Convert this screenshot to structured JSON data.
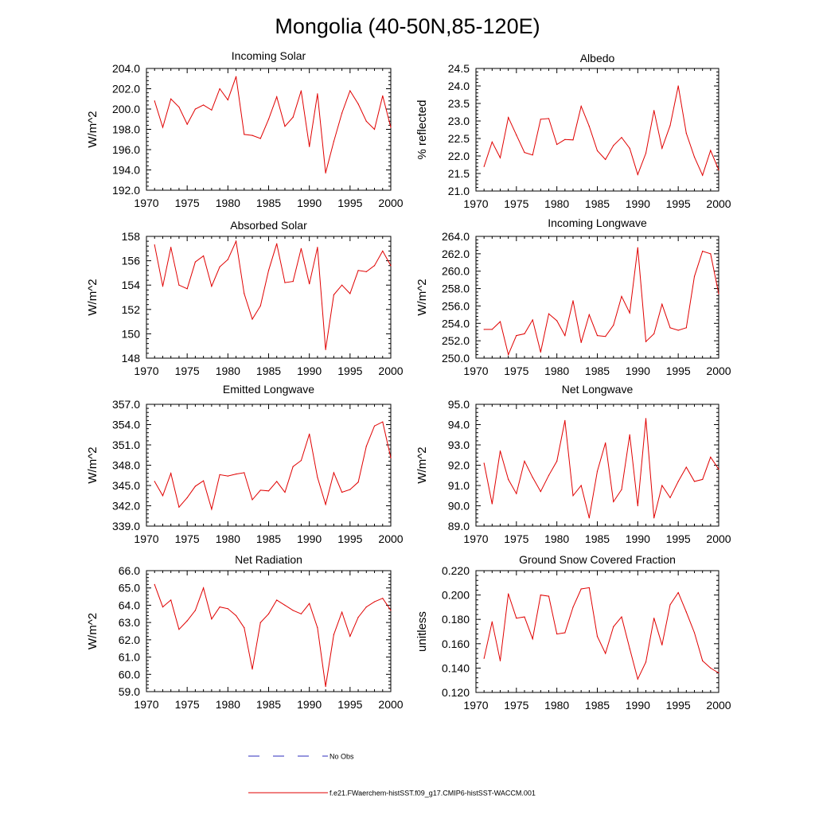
{
  "figure": {
    "title": "Mongolia (40-50N,85-120E)",
    "legend": [
      {
        "label": "No Obs",
        "color": "#2d2dbe",
        "dash": true
      },
      {
        "label": "f.e21.FWaerchem-histSST.f09_g17.CMIP6-histSST-WACCM.001",
        "color": "#e00000",
        "dash": false
      }
    ]
  },
  "chart_data": [
    {
      "type": "line",
      "title": "Incoming Solar",
      "ylabel": "W/m^2",
      "xlim": [
        1970,
        2000
      ],
      "ylim": [
        192,
        204
      ],
      "xticks": [
        1970,
        1975,
        1980,
        1985,
        1990,
        1995,
        2000
      ],
      "yticks": [
        192.0,
        194.0,
        196.0,
        198.0,
        200.0,
        202.0,
        204.0
      ],
      "ytick_labels": [
        "192.0",
        "194.0",
        "196.0",
        "198.0",
        "200.0",
        "202.0",
        "204.0"
      ],
      "x": [
        1971,
        1972,
        1973,
        1974,
        1975,
        1976,
        1977,
        1978,
        1979,
        1980,
        1981,
        1982,
        1983,
        1984,
        1985,
        1986,
        1987,
        1988,
        1989,
        1990,
        1991,
        1992,
        1993,
        1994,
        1995,
        1996,
        1997,
        1998,
        1999,
        2000
      ],
      "values": [
        200.8,
        198.2,
        201.0,
        200.2,
        198.5,
        200.0,
        200.4,
        199.9,
        202.0,
        200.9,
        203.2,
        197.5,
        197.4,
        197.1,
        199.0,
        201.2,
        198.3,
        199.2,
        201.8,
        196.3,
        201.5,
        193.7,
        196.8,
        199.6,
        201.8,
        200.5,
        198.8,
        198.0,
        201.3,
        198.2
      ],
      "color": "#e00000"
    },
    {
      "type": "line",
      "title": "Albedo",
      "ylabel": "% reflected",
      "xlim": [
        1970,
        2000
      ],
      "ylim": [
        21.0,
        24.5
      ],
      "xticks": [
        1970,
        1975,
        1980,
        1985,
        1990,
        1995,
        2000
      ],
      "yticks": [
        21.0,
        21.5,
        22.0,
        22.5,
        23.0,
        23.5,
        24.0,
        24.5
      ],
      "ytick_labels": [
        "21.0",
        "21.5",
        "22.0",
        "22.5",
        "23.0",
        "23.5",
        "24.0",
        "24.5"
      ],
      "x": [
        1971,
        1972,
        1973,
        1974,
        1975,
        1976,
        1977,
        1978,
        1979,
        1980,
        1981,
        1982,
        1983,
        1984,
        1985,
        1986,
        1987,
        1988,
        1989,
        1990,
        1991,
        1992,
        1993,
        1994,
        1995,
        1996,
        1997,
        1998,
        1999,
        2000
      ],
      "values": [
        21.7,
        22.4,
        21.95,
        23.1,
        22.6,
        22.1,
        22.03,
        23.05,
        23.07,
        22.33,
        22.47,
        22.46,
        23.42,
        22.85,
        22.15,
        21.9,
        22.3,
        22.53,
        22.22,
        21.47,
        22.08,
        23.3,
        22.22,
        22.87,
        24.0,
        22.65,
        21.97,
        21.45,
        22.16,
        21.6
      ],
      "color": "#e00000"
    },
    {
      "type": "line",
      "title": "Absorbed Solar",
      "ylabel": "W/m^2",
      "xlim": [
        1970,
        2000
      ],
      "ylim": [
        148,
        158
      ],
      "xticks": [
        1970,
        1975,
        1980,
        1985,
        1990,
        1995,
        2000
      ],
      "yticks": [
        148,
        150,
        152,
        154,
        156,
        158
      ],
      "ytick_labels": [
        "148",
        "150",
        "152",
        "154",
        "156",
        "158"
      ],
      "x": [
        1971,
        1972,
        1973,
        1974,
        1975,
        1976,
        1977,
        1978,
        1979,
        1980,
        1981,
        1982,
        1983,
        1984,
        1985,
        1986,
        1987,
        1988,
        1989,
        1990,
        1991,
        1992,
        1993,
        1994,
        1995,
        1996,
        1997,
        1998,
        1999,
        2000
      ],
      "values": [
        157.3,
        153.9,
        157.1,
        154.0,
        153.7,
        155.9,
        156.4,
        153.9,
        155.5,
        156.1,
        157.6,
        153.3,
        151.2,
        152.3,
        155.2,
        157.4,
        154.2,
        154.3,
        157.0,
        154.1,
        157.1,
        148.7,
        153.2,
        154.0,
        153.3,
        155.2,
        155.1,
        155.6,
        156.8,
        155.6
      ],
      "color": "#e00000"
    },
    {
      "type": "line",
      "title": "Incoming Longwave",
      "ylabel": "W/m^2",
      "xlim": [
        1970,
        2000
      ],
      "ylim": [
        250,
        264
      ],
      "xticks": [
        1970,
        1975,
        1980,
        1985,
        1990,
        1995,
        2000
      ],
      "yticks": [
        250.0,
        252.0,
        254.0,
        256.0,
        258.0,
        260.0,
        262.0,
        264.0
      ],
      "ytick_labels": [
        "250.0",
        "252.0",
        "254.0",
        "256.0",
        "258.0",
        "260.0",
        "262.0",
        "264.0"
      ],
      "x": [
        1971,
        1972,
        1973,
        1974,
        1975,
        1976,
        1977,
        1978,
        1979,
        1980,
        1981,
        1982,
        1983,
        1984,
        1985,
        1986,
        1987,
        1988,
        1989,
        1990,
        1991,
        1992,
        1993,
        1994,
        1995,
        1996,
        1997,
        1998,
        1999,
        2000
      ],
      "values": [
        253.3,
        253.3,
        254.2,
        250.4,
        252.6,
        252.8,
        254.4,
        250.7,
        255.1,
        254.3,
        252.6,
        256.6,
        251.8,
        255.0,
        252.6,
        252.5,
        253.8,
        257.1,
        255.2,
        262.7,
        251.9,
        252.8,
        256.2,
        253.5,
        253.2,
        253.5,
        259.4,
        262.3,
        262.0,
        257.4
      ],
      "color": "#e00000"
    },
    {
      "type": "line",
      "title": "Emitted Longwave",
      "ylabel": "W/m^2",
      "xlim": [
        1970,
        2000
      ],
      "ylim": [
        339,
        357
      ],
      "xticks": [
        1970,
        1975,
        1980,
        1985,
        1990,
        1995,
        2000
      ],
      "yticks": [
        339.0,
        342.0,
        345.0,
        348.0,
        351.0,
        354.0,
        357.0
      ],
      "ytick_labels": [
        "339.0",
        "342.0",
        "345.0",
        "348.0",
        "351.0",
        "354.0",
        "357.0"
      ],
      "x": [
        1971,
        1972,
        1973,
        1974,
        1975,
        1976,
        1977,
        1978,
        1979,
        1980,
        1981,
        1982,
        1983,
        1984,
        1985,
        1986,
        1987,
        1988,
        1989,
        1990,
        1991,
        1992,
        1993,
        1994,
        1995,
        1996,
        1997,
        1998,
        1999,
        2000
      ],
      "values": [
        345.6,
        343.5,
        346.8,
        341.8,
        343.2,
        344.9,
        345.7,
        341.5,
        346.6,
        346.4,
        346.7,
        346.9,
        342.9,
        344.3,
        344.2,
        345.6,
        344.0,
        347.8,
        348.7,
        352.6,
        346.2,
        342.2,
        346.9,
        344.0,
        344.4,
        345.5,
        350.8,
        353.8,
        354.4,
        349.1
      ],
      "color": "#e00000"
    },
    {
      "type": "line",
      "title": "Net Longwave",
      "ylabel": "W/m^2",
      "xlim": [
        1970,
        2000
      ],
      "ylim": [
        89.0,
        95.0
      ],
      "xticks": [
        1970,
        1975,
        1980,
        1985,
        1990,
        1995,
        2000
      ],
      "yticks": [
        89.0,
        90.0,
        91.0,
        92.0,
        93.0,
        94.0,
        95.0
      ],
      "ytick_labels": [
        "89.0",
        "90.0",
        "91.0",
        "92.0",
        "93.0",
        "94.0",
        "95.0"
      ],
      "x": [
        1971,
        1972,
        1973,
        1974,
        1975,
        1976,
        1977,
        1978,
        1979,
        1980,
        1981,
        1982,
        1983,
        1984,
        1985,
        1986,
        1987,
        1988,
        1989,
        1990,
        1991,
        1992,
        1993,
        1994,
        1995,
        1996,
        1997,
        1998,
        1999,
        2000
      ],
      "values": [
        92.1,
        90.1,
        92.7,
        91.3,
        90.6,
        92.2,
        91.4,
        90.7,
        91.5,
        92.2,
        94.2,
        90.5,
        91.0,
        89.4,
        91.7,
        93.1,
        90.2,
        90.8,
        93.5,
        90.0,
        94.3,
        89.4,
        91.0,
        90.4,
        91.2,
        91.9,
        91.2,
        91.3,
        92.4,
        91.8
      ],
      "color": "#e00000"
    },
    {
      "type": "line",
      "title": "Net Radiation",
      "ylabel": "W/m^2",
      "xlim": [
        1970,
        2000
      ],
      "ylim": [
        59,
        66
      ],
      "xticks": [
        1970,
        1975,
        1980,
        1985,
        1990,
        1995,
        2000
      ],
      "yticks": [
        59.0,
        60.0,
        61.0,
        62.0,
        63.0,
        64.0,
        65.0,
        66.0
      ],
      "ytick_labels": [
        "59.0",
        "60.0",
        "61.0",
        "62.0",
        "63.0",
        "64.0",
        "65.0",
        "66.0"
      ],
      "x": [
        1971,
        1972,
        1973,
        1974,
        1975,
        1976,
        1977,
        1978,
        1979,
        1980,
        1981,
        1982,
        1983,
        1984,
        1985,
        1986,
        1987,
        1988,
        1989,
        1990,
        1991,
        1992,
        1993,
        1994,
        1995,
        1996,
        1997,
        1998,
        1999,
        2000
      ],
      "values": [
        65.2,
        63.9,
        64.3,
        62.6,
        63.1,
        63.7,
        65.0,
        63.2,
        63.9,
        63.8,
        63.4,
        62.7,
        60.3,
        63.0,
        63.5,
        64.3,
        64.0,
        63.7,
        63.5,
        64.1,
        62.7,
        59.3,
        62.3,
        63.6,
        62.2,
        63.3,
        63.9,
        64.2,
        64.4,
        63.7
      ],
      "color": "#e00000"
    },
    {
      "type": "line",
      "title": "Ground Snow Covered Fraction",
      "ylabel": "unitless",
      "xlim": [
        1970,
        2000
      ],
      "ylim": [
        0.12,
        0.22
      ],
      "xticks": [
        1970,
        1975,
        1980,
        1985,
        1990,
        1995,
        2000
      ],
      "yticks": [
        0.12,
        0.14,
        0.16,
        0.18,
        0.2,
        0.22
      ],
      "ytick_labels": [
        "0.120",
        "0.140",
        "0.160",
        "0.180",
        "0.200",
        "0.220"
      ],
      "x": [
        1971,
        1972,
        1973,
        1974,
        1975,
        1976,
        1977,
        1978,
        1979,
        1980,
        1981,
        1982,
        1983,
        1984,
        1985,
        1986,
        1987,
        1988,
        1989,
        1990,
        1991,
        1992,
        1993,
        1994,
        1995,
        1996,
        1997,
        1998,
        1999,
        2000
      ],
      "values": [
        0.148,
        0.178,
        0.146,
        0.201,
        0.181,
        0.182,
        0.164,
        0.2,
        0.199,
        0.168,
        0.169,
        0.19,
        0.205,
        0.206,
        0.166,
        0.152,
        0.174,
        0.182,
        0.156,
        0.131,
        0.145,
        0.181,
        0.159,
        0.192,
        0.202,
        0.186,
        0.169,
        0.146,
        0.14,
        0.136
      ],
      "color": "#e00000"
    }
  ]
}
